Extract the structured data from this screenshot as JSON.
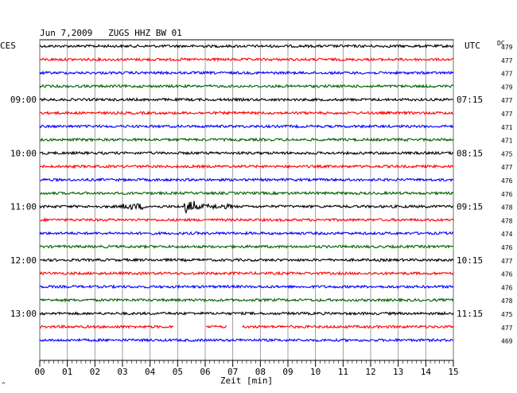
{
  "header": {
    "title": "Jun 7,2009   ZUGS HHZ BW 01",
    "left_zone": "CES",
    "right_zone": "UTC",
    "dc_label": "DC"
  },
  "chart_data": {
    "type": "line",
    "title": "Jun 7,2009   ZUGS HHZ BW 01",
    "xlabel": "Zeit [min]",
    "x_ticks": [
      "00",
      "01",
      "02",
      "03",
      "04",
      "05",
      "06",
      "07",
      "08",
      "09",
      "10",
      "11",
      "12",
      "13",
      "14",
      "15"
    ],
    "xlim": [
      0,
      15
    ],
    "grid": true,
    "rows_per_hour": 4,
    "left_hour_labels": [
      "09:00",
      "10:00",
      "11:00",
      "12:00",
      "13:00"
    ],
    "right_hour_labels": [
      "07:15",
      "08:15",
      "09:15",
      "10:15",
      "11:15"
    ],
    "dc_values": [
      "479",
      "477",
      "477",
      "479",
      "477",
      "477",
      "471",
      "471",
      "475",
      "477",
      "476",
      "476",
      "478",
      "478",
      "474",
      "476",
      "477",
      "476",
      "476",
      "478",
      "475",
      "477",
      "469"
    ],
    "series_colors": [
      "#000000",
      "#ff0000",
      "#0000ff",
      "#006400"
    ],
    "events": [
      {
        "row": 12,
        "start_min": 3.0,
        "end_min": 3.8,
        "amplitude": 4
      },
      {
        "row": 12,
        "start_min": 5.2,
        "end_min": 5.6,
        "amplitude": 8
      },
      {
        "row": 12,
        "start_min": 5.6,
        "end_min": 7.0,
        "amplitude": 3
      }
    ],
    "gaps": [
      {
        "row": 21,
        "start_min": 4.85,
        "end_min": 6.0
      },
      {
        "row": 21,
        "start_min": 6.8,
        "end_min": 7.35
      }
    ]
  }
}
